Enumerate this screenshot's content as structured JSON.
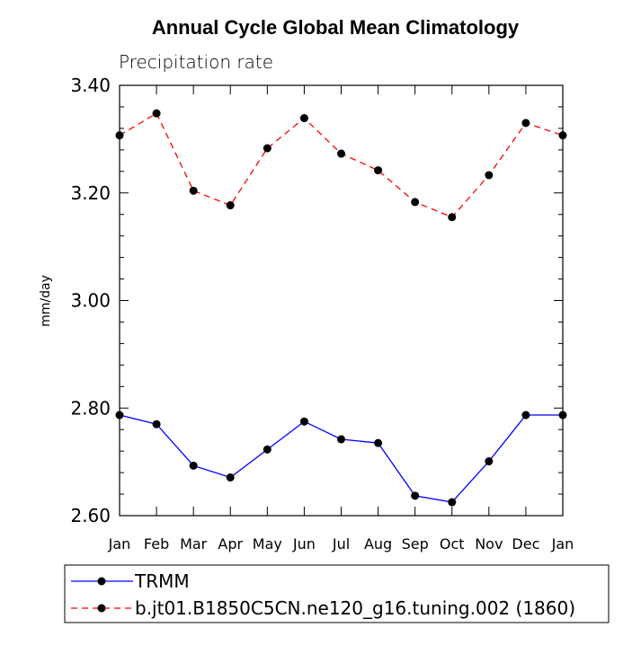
{
  "chart_data": {
    "type": "line",
    "title": "Annual Cycle Global Mean Climatology",
    "subtitle": "Precipitation rate",
    "ylabel": "mm/day",
    "xlabel": "",
    "ylim": [
      2.6,
      3.4
    ],
    "yticks": [
      "2.60",
      "2.80",
      "3.00",
      "3.20",
      "3.40"
    ],
    "categories": [
      "Jan",
      "Feb",
      "Mar",
      "Apr",
      "May",
      "Jun",
      "Jul",
      "Aug",
      "Sep",
      "Oct",
      "Nov",
      "Dec",
      "Jan"
    ],
    "series": [
      {
        "name": "TRMM",
        "color": "#0000ff",
        "dash": "solid",
        "marker": "filled-circle",
        "values": [
          2.787,
          2.77,
          2.693,
          2.671,
          2.723,
          2.775,
          2.742,
          2.735,
          2.637,
          2.625,
          2.701,
          2.787,
          2.787
        ]
      },
      {
        "name": "b.jt01.B1850C5CN.ne120_g16.tuning.002 (1860)",
        "color": "#ff0000",
        "dash": "dashed",
        "marker": "filled-circle",
        "values": [
          3.307,
          3.348,
          3.204,
          3.177,
          3.283,
          3.339,
          3.273,
          3.242,
          3.183,
          3.155,
          3.233,
          3.33,
          3.307
        ]
      }
    ],
    "legend_position": "bottom",
    "grid": false
  }
}
